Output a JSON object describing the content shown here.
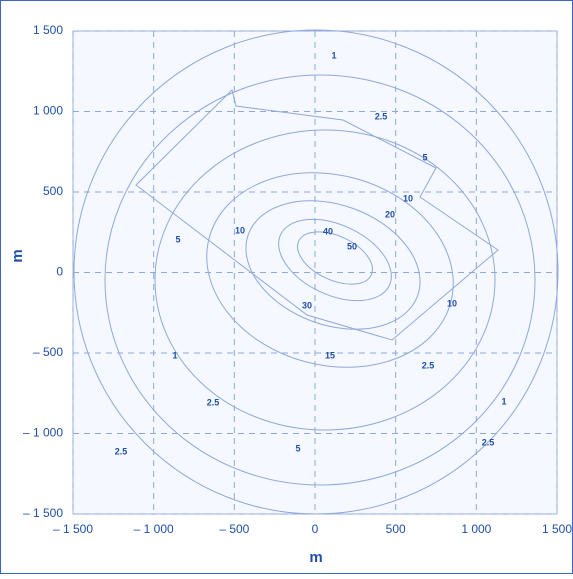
{
  "chart_data": {
    "type": "contour-map",
    "xlabel": "m",
    "ylabel": "m",
    "xlim": [
      -1500,
      1500
    ],
    "ylim": [
      -1500,
      1500
    ],
    "xticks": [
      {
        "value": -1500,
        "label": "– 1 500"
      },
      {
        "value": -1000,
        "label": "– 1 000"
      },
      {
        "value": -500,
        "label": "– 500"
      },
      0,
      500,
      {
        "value": 1000,
        "label": "1 000"
      },
      {
        "value": 1500,
        "label": "1 500"
      }
    ],
    "yticks": [
      {
        "value": -1500,
        "label": "– 1 500"
      },
      {
        "value": -1000,
        "label": "– 1 000"
      },
      {
        "value": -500,
        "label": "– 500"
      },
      0,
      500,
      {
        "value": 1000,
        "label": "1 000"
      },
      {
        "value": 1500,
        "label": "1 500"
      }
    ],
    "grid": true,
    "contour_labels": [
      "1",
      "2.5",
      "5",
      "10",
      "20",
      "40",
      "50",
      "10",
      "5",
      "30",
      "15",
      "10",
      "2.5",
      "1",
      "2.5",
      "1",
      "2.5",
      "5",
      "2.5"
    ]
  }
}
